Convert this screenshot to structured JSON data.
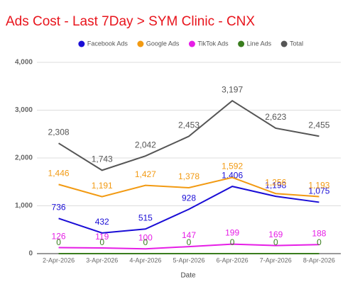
{
  "chart_data": {
    "type": "line",
    "title": "Ads Cost - Last 7Day > SYM Clinic - CNX",
    "x_label": "Date",
    "categories": [
      "2-Apr-2026",
      "3-Apr-2026",
      "4-Apr-2026",
      "5-Apr-2026",
      "6-Apr-2026",
      "7-Apr-2026",
      "8-Apr-2026"
    ],
    "series": [
      {
        "name": "Facebook Ads",
        "color": "#1a0dd6",
        "values": [
          736,
          432,
          515,
          928,
          1406,
          1198,
          1075
        ],
        "value_labels": [
          "736",
          "432",
          "515",
          "928",
          "1,406",
          "1,198",
          "1,075"
        ]
      },
      {
        "name": "Google Ads",
        "color": "#f29a12",
        "values": [
          1446,
          1191,
          1427,
          1378,
          1592,
          1256,
          1193
        ],
        "value_labels": [
          "1,446",
          "1,191",
          "1,427",
          "1,378",
          "1,592",
          "1,256",
          "1,193"
        ]
      },
      {
        "name": "TikTok Ads",
        "color": "#e61ee6",
        "values": [
          126,
          119,
          100,
          147,
          199,
          169,
          188
        ]
      },
      {
        "name": "Line Ads",
        "color": "#3a7d1e",
        "values": [
          0,
          0,
          0,
          0,
          0,
          0,
          0
        ]
      },
      {
        "name": "Total",
        "color": "#555555",
        "values": [
          2308,
          1743,
          2042,
          2453,
          3197,
          2623,
          2455
        ],
        "value_labels": [
          "2,308",
          "1,743",
          "2,042",
          "2,453",
          "3,197",
          "2,623",
          "2,455"
        ]
      }
    ],
    "ylim": [
      0,
      4000
    ],
    "yticks": [
      0,
      {
        "value": 1000,
        "label": "1,000"
      },
      {
        "value": 2000,
        "label": "2,000"
      },
      {
        "value": 3000,
        "label": "3,000"
      },
      {
        "value": 4000,
        "label": "4,000"
      }
    ],
    "grid": true,
    "legend": "top"
  }
}
